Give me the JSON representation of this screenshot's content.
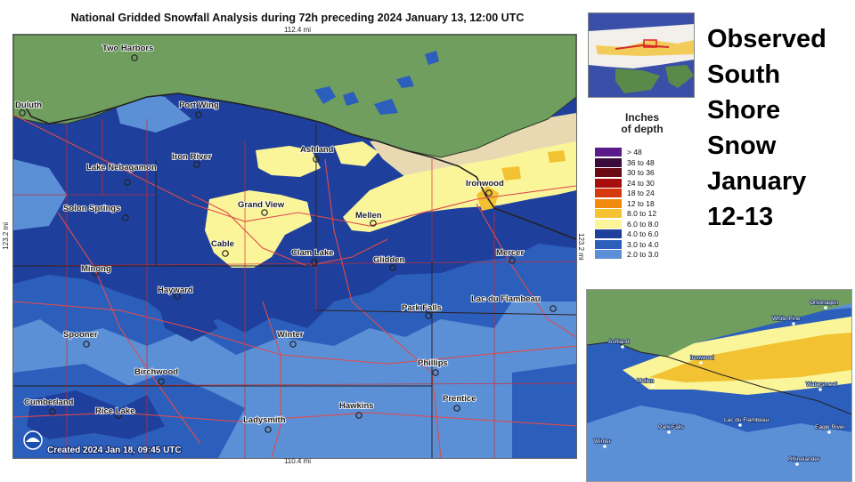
{
  "map": {
    "title": "National Gridded Snowfall Analysis during 72h preceding 2024 January 13, 12:00 UTC",
    "scale_top": "112.4 mi",
    "scale_bottom": "110.4 mi",
    "scale_left": "123.2 mi",
    "scale_right": "123.2 mi",
    "created": "Created 2024 Jan 18, 09:45 UTC",
    "logo": "noaa-logo",
    "colors": {
      "lake": "#6f9e5e",
      "land_tan": "#e8d9b2",
      "band_2_3": "#5b8fd6",
      "band_3_4": "#2c5fbc",
      "band_4_6": "#1f3f9c",
      "band_6_8": "#fbf59a",
      "band_8_12": "#f2c233",
      "county_lines": "#d42a2a",
      "state_lines": "#222222"
    },
    "cities": [
      {
        "name": "Two Harbors"
      },
      {
        "name": "Duluth"
      },
      {
        "name": "Port Wing"
      },
      {
        "name": "Iron River"
      },
      {
        "name": "Lake Nebagamon"
      },
      {
        "name": "Ashland"
      },
      {
        "name": "Ironwood"
      },
      {
        "name": "Solon Springs"
      },
      {
        "name": "Grand View"
      },
      {
        "name": "Mellen"
      },
      {
        "name": "Cable"
      },
      {
        "name": "Clam Lake"
      },
      {
        "name": "Glidden"
      },
      {
        "name": "Mercer"
      },
      {
        "name": "Minong"
      },
      {
        "name": "Hayward"
      },
      {
        "name": "Lac du Flambeau"
      },
      {
        "name": "Park Falls"
      },
      {
        "name": "Spooner"
      },
      {
        "name": "Winter"
      },
      {
        "name": "Phillips"
      },
      {
        "name": "Birchwood"
      },
      {
        "name": "Cumberland"
      },
      {
        "name": "Rice Lake"
      },
      {
        "name": "Hawkins"
      },
      {
        "name": "Prentice"
      },
      {
        "name": "Ladysmith"
      }
    ]
  },
  "legend": {
    "title_line1": "Inches",
    "title_line2": "of depth",
    "rows": [
      {
        "range": ">   48",
        "color": "#5a1a8a"
      },
      {
        "range": "36  to  48",
        "color": "#3a0a3a"
      },
      {
        "range": "30  to  36",
        "color": "#6a0a12"
      },
      {
        "range": "24  to  30",
        "color": "#a80e0e"
      },
      {
        "range": "18  to  24",
        "color": "#d83a10"
      },
      {
        "range": "12  to  18",
        "color": "#f28a10"
      },
      {
        "range": "8.0  to  12",
        "color": "#f5c232"
      },
      {
        "range": "6.0  to  8.0",
        "color": "#fbf59a"
      },
      {
        "range": "4.0  to  6.0",
        "color": "#1f3f9c"
      },
      {
        "range": "3.0  to  4.0",
        "color": "#2c5fbc"
      },
      {
        "range": "2.0  to  3.0",
        "color": "#5b8fd6"
      }
    ]
  },
  "headline": {
    "lines": [
      "Observed",
      "South",
      "Shore",
      "Snow",
      "January",
      "12-13"
    ]
  },
  "inset": {
    "cities": [
      {
        "name": "Ontonagon"
      },
      {
        "name": "White Pine"
      },
      {
        "name": "Ashland"
      },
      {
        "name": "Ironwood"
      },
      {
        "name": "Mellen"
      },
      {
        "name": "Watersmeet"
      },
      {
        "name": "Lac du Flambeau"
      },
      {
        "name": "Park Falls"
      },
      {
        "name": "Eagle River"
      },
      {
        "name": "Winter"
      },
      {
        "name": "Rhinelander"
      }
    ]
  }
}
